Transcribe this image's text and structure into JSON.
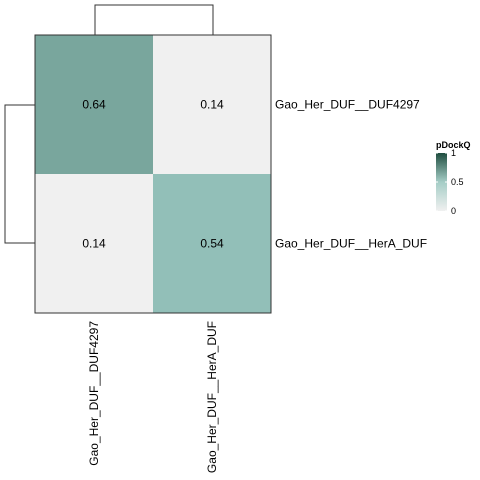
{
  "chart_data": {
    "type": "heatmap",
    "rows": [
      "Gao_Her_DUF__DUF4297",
      "Gao_Her_DUF__HerA_DUF"
    ],
    "columns": [
      "Gao_Her_DUF__DUF4297",
      "Gao_Her_DUF__HerA_DUF"
    ],
    "values": [
      [
        0.64,
        0.14
      ],
      [
        0.14,
        0.54
      ]
    ],
    "value_labels": [
      [
        "0.64",
        "0.14"
      ],
      [
        "0.14",
        "0.54"
      ]
    ],
    "legend": {
      "title": "pDockQ",
      "range": [
        0,
        1
      ],
      "ticks": [
        {
          "value": 1,
          "label": "1"
        },
        {
          "value": 0.5,
          "label": "0.5"
        },
        {
          "value": 0,
          "label": "0"
        }
      ],
      "color_low": "#f0f0f0",
      "color_mid": "#9cc9c2",
      "color_high": "#1f4d3f"
    },
    "dendrograms": {
      "rows": true,
      "columns": true
    },
    "grid": false
  }
}
